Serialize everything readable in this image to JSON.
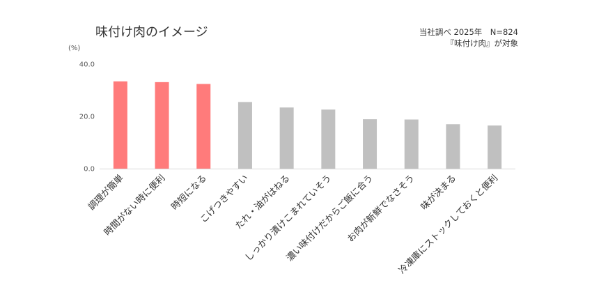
{
  "chart_data": {
    "type": "bar",
    "title": "味付け肉のイメージ",
    "note_lines": [
      "当社調べ 2025年　N=824",
      "『味付け肉』が対象"
    ],
    "y_unit": "(%)",
    "ylim": [
      0,
      40
    ],
    "yticks": [
      "0.0",
      "20.0",
      "40.0"
    ],
    "grid": false,
    "categories": [
      "調理が簡単",
      "時間がない時に便利",
      "時短になる",
      "こげつきやすい",
      "たれ・油がはねる",
      "しっかり漬けこまれていそう",
      "濃い味付けだからご飯に合う",
      "お肉が新鮮でなさそう",
      "味が決まる",
      "冷凍庫にストックしておくと便利"
    ],
    "values": [
      33.4,
      33.1,
      32.4,
      25.5,
      23.4,
      22.6,
      18.9,
      18.8,
      17.0,
      16.5
    ],
    "colors": {
      "highlight": "#ff7b7b",
      "default": "#c0c0c0",
      "axis": "#d9d9d9"
    },
    "highlight_count": 3
  }
}
